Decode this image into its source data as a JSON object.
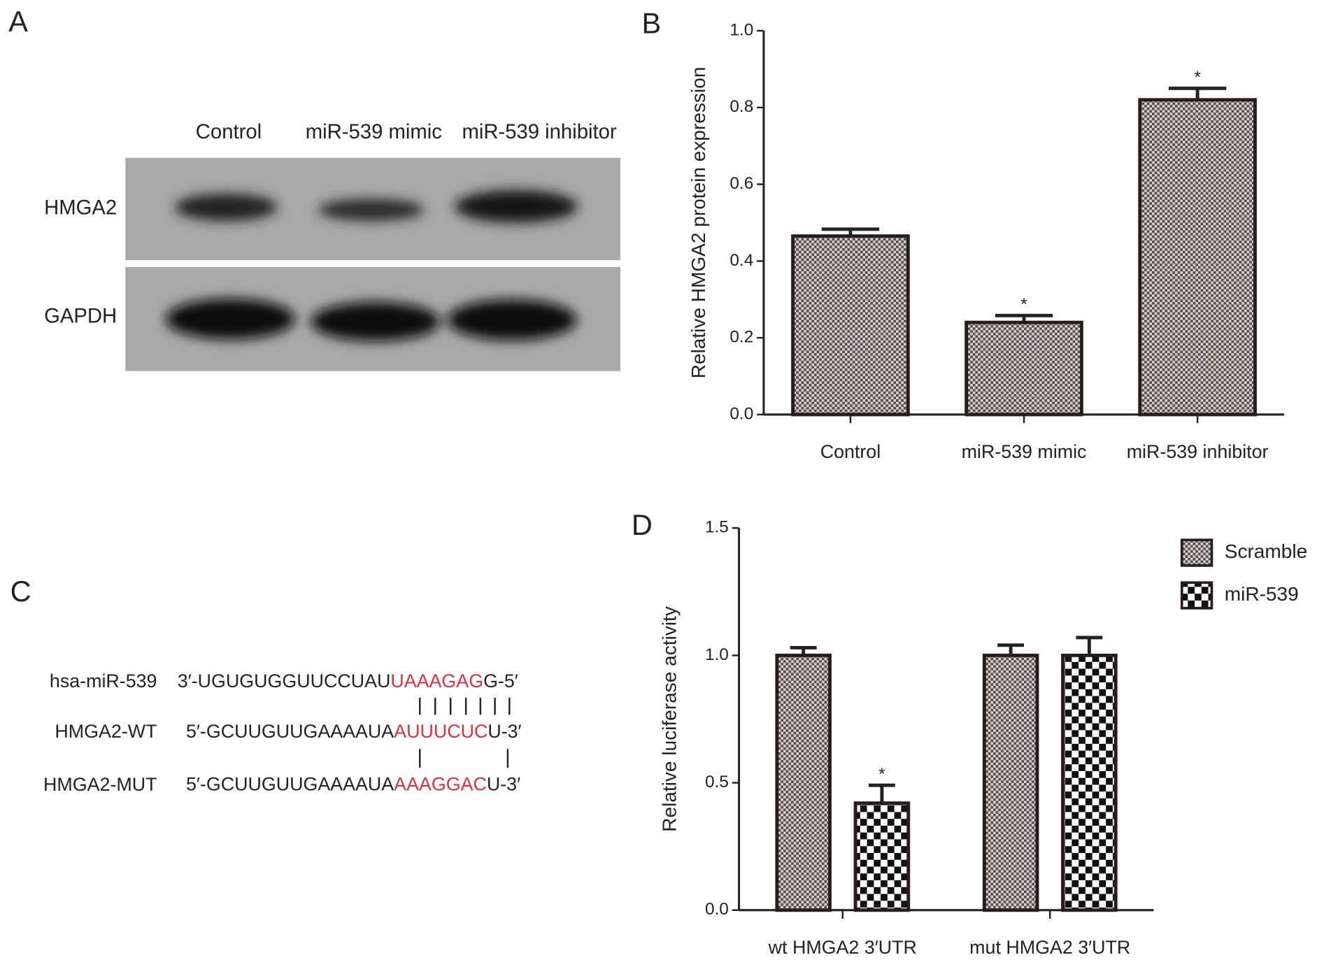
{
  "panel_a": {
    "panel": "A",
    "lanes": [
      "Control",
      "miR-539 mimic",
      "miR-539 inhibitor"
    ],
    "rows": [
      "HMGA2",
      "GAPDH"
    ]
  },
  "panel_c": {
    "panel": "C",
    "rows": [
      {
        "name": "hsa-miR-539",
        "prefix": "3′-UGUGUGGUUCCUAU",
        "site": "UAAAGAG",
        "suffix": "G-5′"
      },
      {
        "name": "HMGA2-WT",
        "prefix": "5′-GCUUGUUGAAAAUA",
        "site": "AUUUCUC",
        "suffix": "U-3′"
      },
      {
        "name": "HMGA2-MUT",
        "prefix": "5′-GCUUGUUGAAAAUA",
        "site": "AAAGGAC",
        "suffix": "U-3′"
      }
    ]
  },
  "chart_data": [
    {
      "type": "bar",
      "panel": "B",
      "ylabel": "Relative HMGA2 protein expression",
      "categories": [
        "Control",
        "miR-539 mimic",
        "miR-539 inhibitor"
      ],
      "values": [
        0.465,
        0.24,
        0.82
      ],
      "errors": [
        0.018,
        0.018,
        0.03
      ],
      "significance": [
        null,
        "*",
        "*"
      ],
      "color": "#5a4a4a",
      "ylim": [
        0,
        1.0
      ],
      "yticks": [
        {
          "value": 0,
          "label": "0.0"
        },
        0.2,
        0.4,
        0.6,
        0.8,
        {
          "value": 1.0,
          "label": "1.0"
        }
      ]
    },
    {
      "type": "grouped_bar",
      "panel": "D",
      "ylabel": "Relative luciferase activity",
      "categories": [
        "wt HMGA2 3′UTR",
        "mut HMGA2 3′UTR"
      ],
      "series": [
        {
          "name": "Scramble",
          "color": "#5a4a4a",
          "values": [
            1.0,
            1.0
          ],
          "errors": [
            0.03,
            0.04
          ],
          "significance": [
            null,
            null
          ]
        },
        {
          "name": "miR-539",
          "color": "#111111",
          "values": [
            0.42,
            1.0
          ],
          "errors": [
            0.07,
            0.07
          ],
          "significance": [
            "*",
            null
          ]
        }
      ],
      "ylim": [
        0,
        1.5
      ],
      "yticks": [
        {
          "value": 0,
          "label": "0.0"
        },
        0.5,
        {
          "value": 1.0,
          "label": "1.0"
        },
        1.5
      ],
      "legend": "top-right"
    }
  ]
}
